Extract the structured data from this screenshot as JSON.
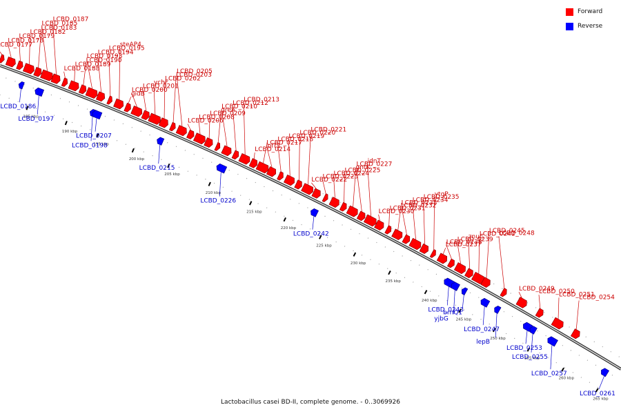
{
  "caption": "Lactobacillus casei BD-II, complete genome. - 0..3069926",
  "legend": [
    {
      "label": "Forward",
      "color": "#ff0000"
    },
    {
      "label": "Reverse",
      "color": "#0000ff"
    }
  ],
  "colors": {
    "forward": "#ff0000",
    "reverse": "#0000ff",
    "label_forward": "#cc0000",
    "label_reverse": "#0000cc",
    "axis": "#9a9a9a"
  },
  "ticks": [
    "185 kbp",
    "190 kbp",
    "195 kbp",
    "200 kbp",
    "205 kbp",
    "210 kbp",
    "215 kbp",
    "220 kbp",
    "225 kbp",
    "230 kbp",
    "235 kbp",
    "240 kbp",
    "245 kbp",
    "250 kbp",
    "255 kbp",
    "260 kbp",
    "265 kbp"
  ],
  "forward_genes": [
    "LCBD_0177",
    "LCBD_0178",
    "LCBD_0179",
    "LCBD_0182",
    "LCBD_0183",
    "LCBD_0185",
    "LCBD_0187",
    "LCBD_0188",
    "LCBD_0189",
    "LCBD_0190",
    "LCBD_0193",
    "LCBD_0194",
    "LCBD_0195",
    "steAP4",
    "gidB",
    "LCBD_0200",
    "LCBD_0201",
    "ychF",
    "LCBD_0202",
    "LCBD_0203",
    "LCBD_0205",
    "LCBD_0206",
    "LCBD_0208",
    "LCBD_0209",
    "greA",
    "LCBD_0210",
    "LCBD_0212",
    "LCBD_0213",
    "LCBD_0214",
    "iolT1",
    "LCBD_0217",
    "LCBD_0218",
    "LCBD_0219",
    "LCBD_0220",
    "LCBD_0221",
    "LCBD_0222",
    "LCBD_0223",
    "LCBD_0224",
    "LCBD_0225",
    "gntK",
    "LCBD_0227",
    "idnT",
    "LCBD_0230",
    "LCBD_0231",
    "LCBD_0232",
    "LCBD_0233",
    "LCBD_0234",
    "LCBD_0235",
    "ytgP",
    "LCBD_0237",
    "LCBD_0238",
    "LCBD_0239",
    "znuC",
    "LCBD_0241",
    "LCBD_0245",
    "LCBD_0248",
    "LCBD_0249",
    "LCBD_0250",
    "LCBD_0251",
    "LCBD_0254"
  ],
  "reverse_genes": [
    "LCBD_0186",
    "LCBD_0197",
    "LCBD_0198",
    "LCBD_0207",
    "LCBD_0215",
    "LCBD_0226",
    "LCBD_0242",
    "LCBD_0243",
    "yjbG",
    "brnQ1",
    "LCBD_0247",
    "lepB",
    "LCBD_0253",
    "LCBD_0255",
    "LCBD_0257",
    "LCBD_0261"
  ]
}
